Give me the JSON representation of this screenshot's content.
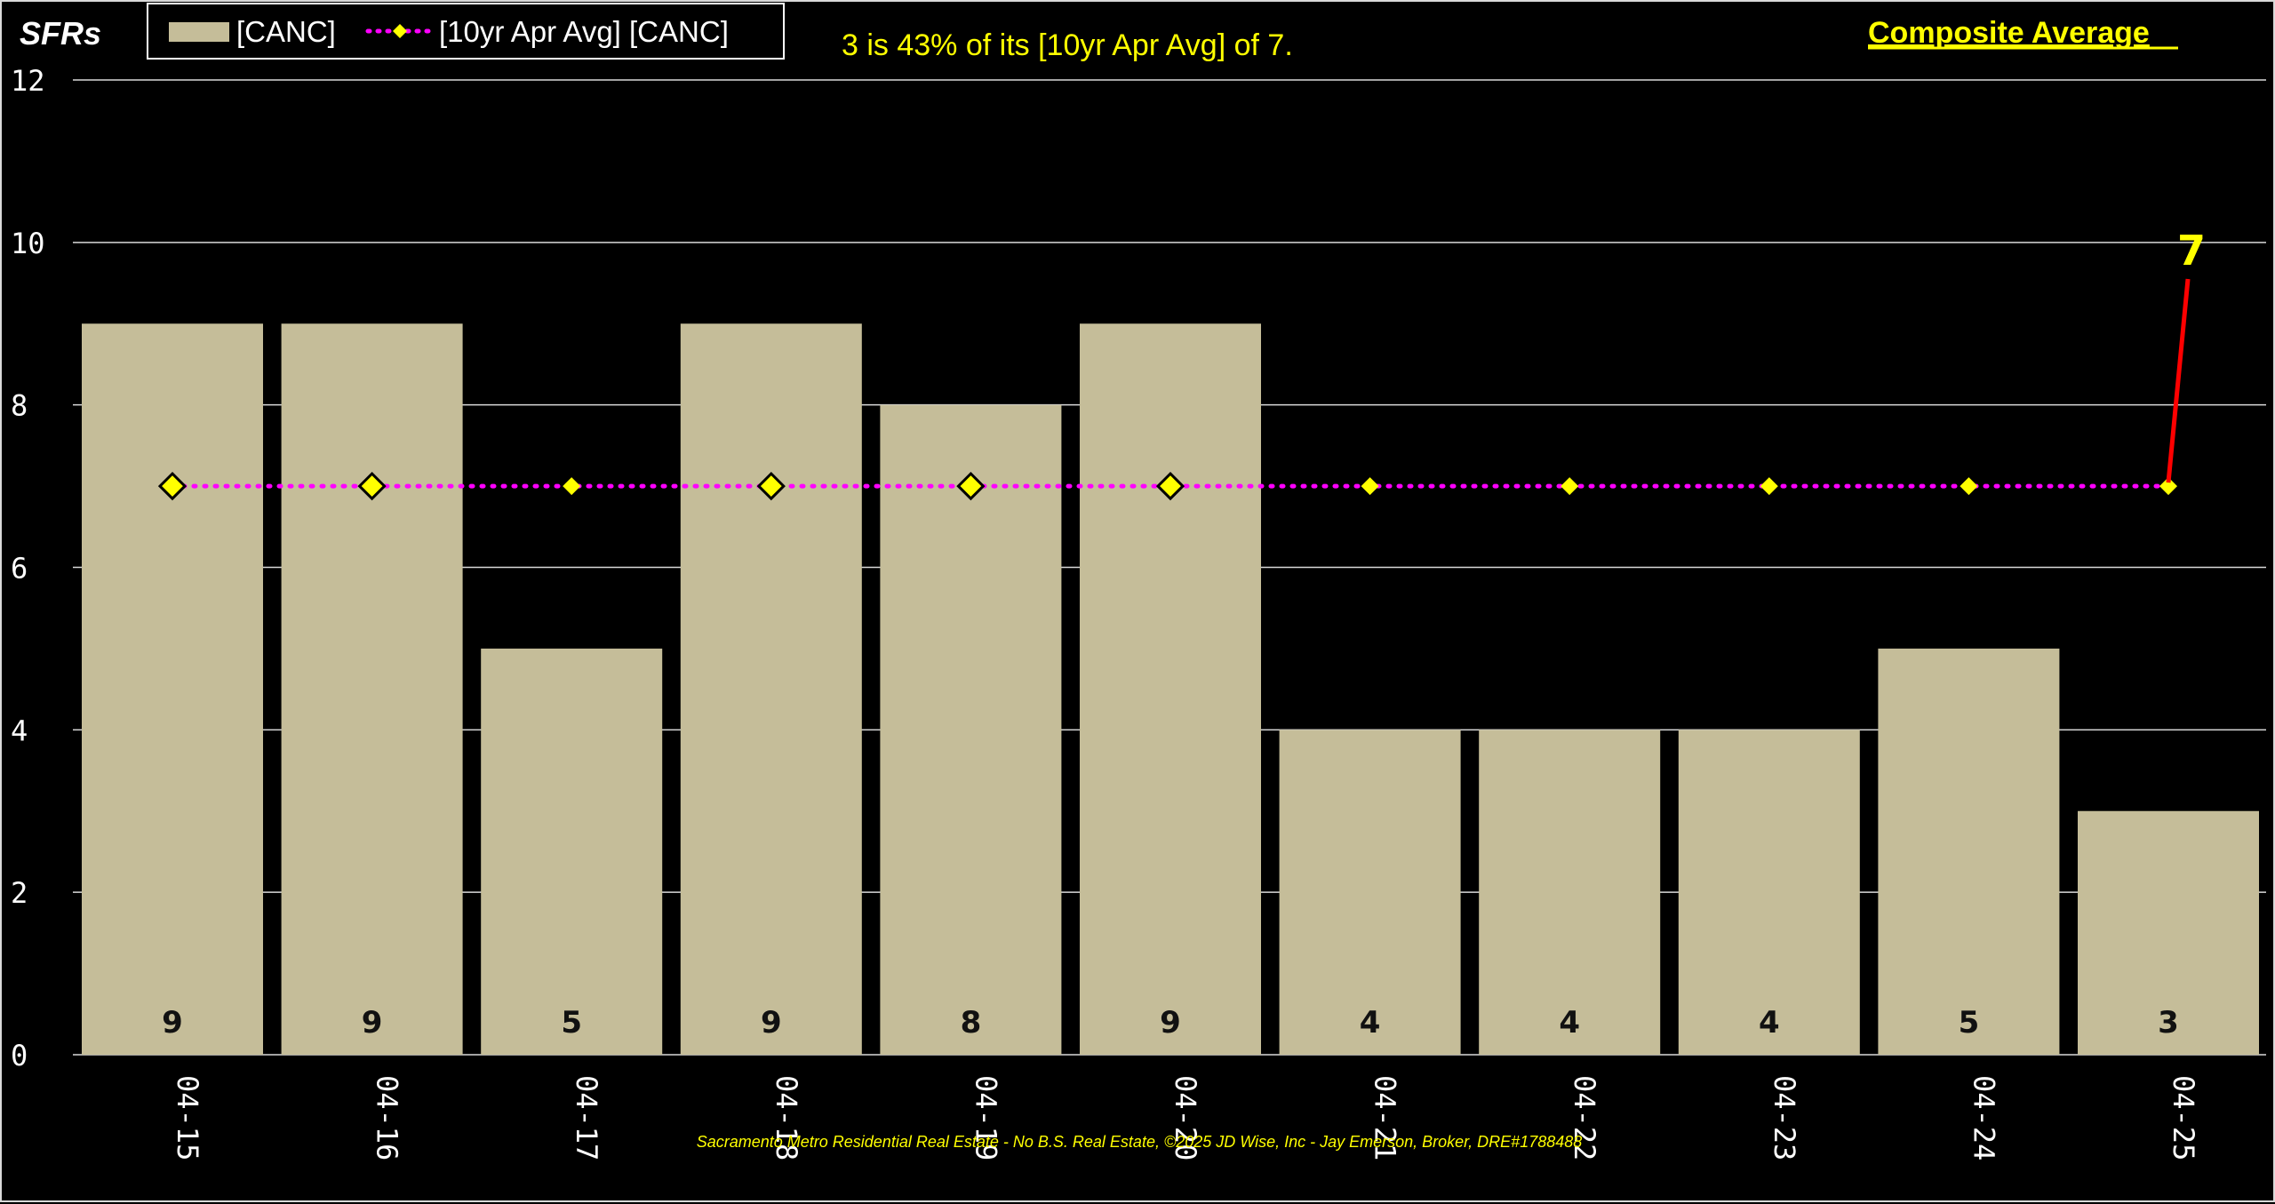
{
  "chart_data": {
    "type": "bar",
    "ylabel": "SFRs",
    "ylim": [
      0,
      12
    ],
    "yticks": [
      0,
      2,
      4,
      6,
      8,
      10,
      12
    ],
    "grid": true,
    "legend_placement": "top-left",
    "categories": [
      "04-15",
      "04-16",
      "04-17",
      "04-18",
      "04-19",
      "04-20",
      "04-21",
      "04-22",
      "04-23",
      "04-24",
      "04-25"
    ],
    "series": [
      {
        "name": "[CANC]",
        "kind": "bar",
        "color": "#c5bd99",
        "values": [
          9,
          9,
          5,
          9,
          8,
          9,
          4,
          4,
          4,
          5,
          3
        ]
      },
      {
        "name": "[10yr Apr Avg] [CANC]",
        "kind": "line",
        "style": "dotted",
        "color": "#ff00ff",
        "marker": "diamond",
        "marker_color": "#ffff00",
        "values": [
          7,
          7,
          7,
          7,
          7,
          7,
          7,
          7,
          7,
          7,
          7
        ]
      }
    ],
    "bar_labels": [
      "9",
      "9",
      "5",
      "9",
      "8",
      "9",
      "4",
      "4",
      "4",
      "5",
      "3"
    ],
    "summary_text": "3 is 43% of its [10yr Apr Avg] of 7.",
    "composite_link": "Composite Average",
    "callout": {
      "label": "7",
      "category": "04-25",
      "value": 7,
      "color": "#ff0000"
    },
    "footer": "Sacramento Metro Residential Real Estate - No B.S. Real Estate, ©2025 JD Wise, Inc - Jay Emerson, Broker, DRE#1788488"
  }
}
